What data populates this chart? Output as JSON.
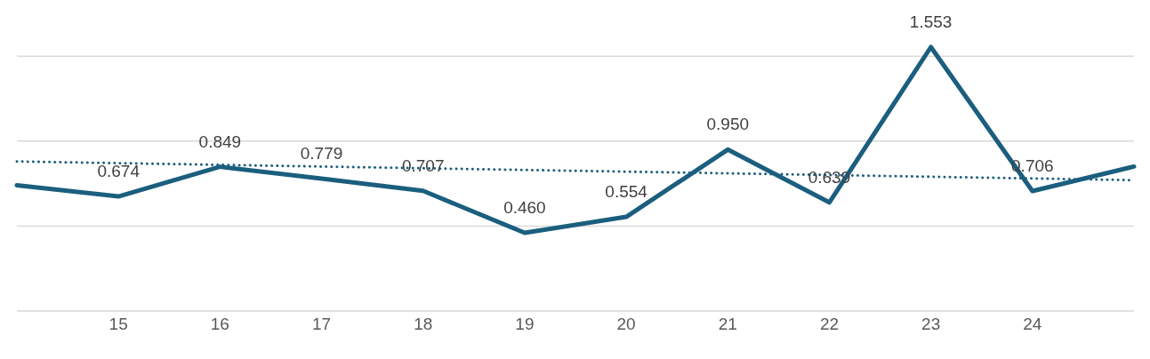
{
  "chart_data": {
    "type": "line",
    "categories": [
      null,
      "15",
      "16",
      "17",
      "18",
      "19",
      "20",
      "21",
      "22",
      "23",
      "24",
      null
    ],
    "series": [
      {
        "type": "line",
        "color": "#1b5e7e",
        "line_style": "solid",
        "values": [
          0.74,
          0.674,
          0.849,
          0.779,
          0.707,
          0.46,
          0.554,
          0.95,
          0.639,
          1.553,
          0.706,
          0.85
        ],
        "value_labels": [
          null,
          "0.674",
          "0.849",
          "0.779",
          "0.707",
          "0.460",
          "0.554",
          "0.950",
          "0.639",
          "1.553",
          "0.706",
          null
        ]
      },
      {
        "type": "line",
        "color": "#1b5e7e",
        "line_style": "dotted",
        "values": [
          0.88,
          0.87,
          0.86,
          0.85,
          0.84,
          0.83,
          0.82,
          0.81,
          0.8,
          0.79,
          0.78,
          0.77
        ]
      }
    ],
    "yticks": [
      {
        "value": 0,
        "label": null
      },
      {
        "value": 0.5,
        "label": null
      },
      {
        "value": 1,
        "label": null
      },
      {
        "value": 1.5,
        "label": null
      }
    ],
    "grid": "y",
    "tick_labels": "x",
    "marker": "none"
  }
}
